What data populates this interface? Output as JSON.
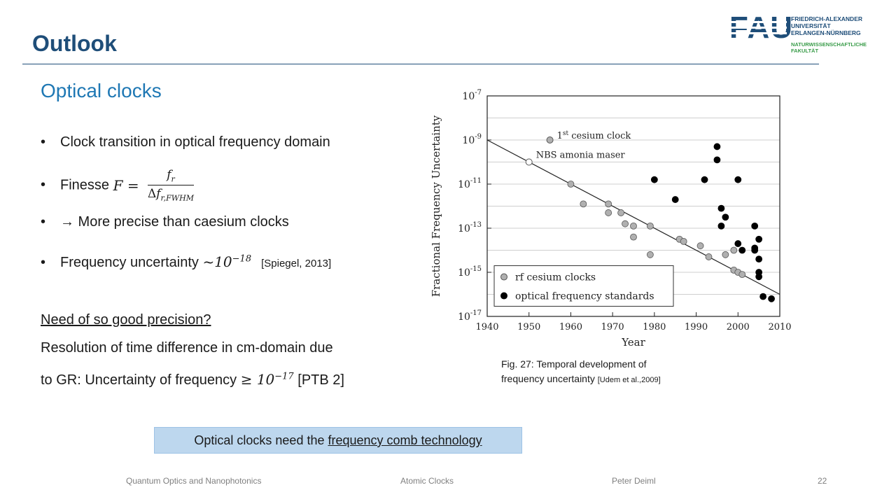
{
  "header": {
    "title": "Outlook",
    "subtitle": "Optical clocks"
  },
  "logo": {
    "mark": "FAU",
    "line1": "FRIEDRICH-ALEXANDER",
    "line2": "UNIVERSITÄT",
    "line3": "ERLANGEN-NÜRNBERG",
    "line4": "NATURWISSENSCHAFTLICHE",
    "line5": "FAKULTÄT",
    "color_blue": "#1f4e79",
    "color_green": "#3a9c4a"
  },
  "bullets": {
    "b1": "Clock transition in optical frequency domain",
    "b2_prefix": "Finesse ",
    "b2_lhs": "F",
    "b2_eq": " = ",
    "b2_num_base": "f",
    "b2_num_sub": "r",
    "b2_den_delta": "Δ",
    "b2_den_base": "f",
    "b2_den_sub": "r,FWHM",
    "b3": "→ More precise than caesium clocks",
    "b4_prefix": "Frequency uncertainty ",
    "b4_tilde": "~",
    "b4_base": "10",
    "b4_exp": "−18",
    "b4_cite": "[Spiegel, 2013]"
  },
  "body": {
    "question": "Need of so good precision?",
    "line1": "Resolution of time difference in cm-domain due",
    "line2_prefix": "to GR:  Uncertainty of frequency ",
    "line2_ge": "≥ ",
    "line2_base": "10",
    "line2_exp": "−17",
    "line2_cite": " [PTB 2]"
  },
  "figure": {
    "caption_line1": "Fig. 27: Temporal development of",
    "caption_line2_main": "frequency uncertainty ",
    "caption_line2_cite": "[Udem et al.,2009]"
  },
  "callout": {
    "prefix": "Optical clocks need the ",
    "link": "frequency comb technology"
  },
  "footer": {
    "course": "Quantum Optics and Nanophotonics",
    "topic": "Atomic Clocks",
    "author": "Peter Deiml",
    "page": "22"
  },
  "chart_data": {
    "type": "scatter",
    "xlabel": "Year",
    "ylabel": "Fractional Frequency Uncertainty",
    "xlim": [
      1940,
      2010
    ],
    "ylim_log10": [
      -17,
      -7
    ],
    "y_scale": "log",
    "grid": "horizontal",
    "x_ticks": [
      "1940",
      "1950",
      "1960",
      "1970",
      "1980",
      "1990",
      "2000",
      "2010"
    ],
    "y_tick_base": "10",
    "y_tick_exps": [
      "-7",
      "-9",
      "-11",
      "-13",
      "-15",
      "-17"
    ],
    "legend_position": "bottom-left",
    "annotations": {
      "first_cesium_pre": "1",
      "first_cesium_sup": "st",
      "first_cesium_post": " cesium clock",
      "first_cesium_point": {
        "x": 1955,
        "log10_y": -9.0
      },
      "nbs_label": "NBS amonia maser",
      "nbs_point": {
        "x": 1950,
        "log10_y": -10.0
      }
    },
    "trend_line": {
      "x": [
        1940,
        2010
      ],
      "log10_y": [
        -9.0,
        -16.0
      ]
    },
    "series": [
      {
        "name": "rf cesium clocks",
        "marker": "gray-circle",
        "color": "#b0b0b0",
        "points": [
          [
            1960,
            -11.0
          ],
          [
            1963,
            -11.9
          ],
          [
            1969,
            -11.9
          ],
          [
            1969,
            -12.3
          ],
          [
            1972,
            -12.3
          ],
          [
            1973,
            -12.8
          ],
          [
            1975,
            -12.9
          ],
          [
            1975,
            -13.4
          ],
          [
            1979,
            -12.9
          ],
          [
            1979,
            -14.2
          ],
          [
            1986,
            -13.5
          ],
          [
            1987,
            -13.6
          ],
          [
            1991,
            -13.8
          ],
          [
            1993,
            -14.3
          ],
          [
            1997,
            -14.2
          ],
          [
            1999,
            -14.0
          ],
          [
            1999,
            -14.9
          ],
          [
            2000,
            -15.0
          ],
          [
            2001,
            -15.1
          ]
        ]
      },
      {
        "name": "optical frequency standards",
        "marker": "black-circle",
        "color": "#000000",
        "points": [
          [
            1980,
            -10.8
          ],
          [
            1985,
            -11.7
          ],
          [
            1992,
            -10.8
          ],
          [
            1995,
            -9.3
          ],
          [
            1995,
            -9.9
          ],
          [
            1996,
            -12.1
          ],
          [
            1996,
            -12.9
          ],
          [
            1997,
            -12.5
          ],
          [
            2000,
            -10.8
          ],
          [
            2000,
            -13.7
          ],
          [
            2001,
            -14.0
          ],
          [
            2004,
            -12.9
          ],
          [
            2004,
            -13.9
          ],
          [
            2004,
            -14.0
          ],
          [
            2005,
            -13.5
          ],
          [
            2005,
            -14.4
          ],
          [
            2005,
            -15.0
          ],
          [
            2005,
            -15.2
          ],
          [
            2006,
            -16.1
          ],
          [
            2008,
            -16.2
          ]
        ]
      }
    ]
  }
}
